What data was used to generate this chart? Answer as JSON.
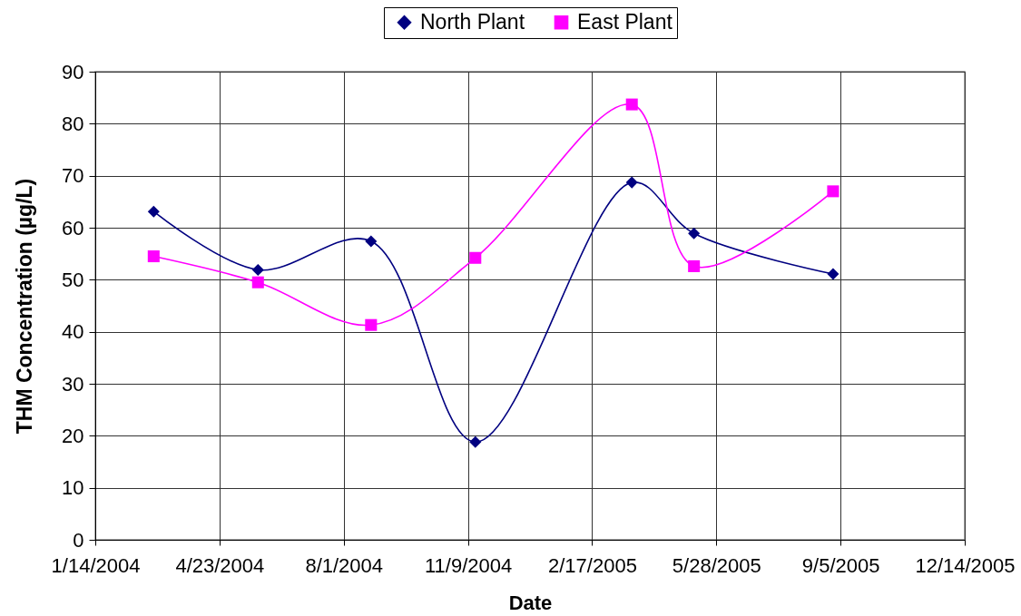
{
  "chart_data": {
    "type": "line",
    "xlabel": "Date",
    "ylabel": "THM Concentration (µg/L)",
    "x": [
      "2004-03-01",
      "2004-05-24",
      "2004-08-23",
      "2004-11-15",
      "2005-03-21",
      "2005-05-10",
      "2005-08-30"
    ],
    "series": [
      {
        "name": "North Plant",
        "color": "#000080",
        "marker": "diamond",
        "values": [
          63.1,
          51.9,
          57.4,
          18.8,
          68.7,
          58.9,
          51.1
        ]
      },
      {
        "name": "East Plant",
        "color": "#ff00ff",
        "marker": "square",
        "values": [
          54.5,
          49.5,
          41.3,
          54.2,
          83.7,
          52.6,
          67.0
        ]
      }
    ],
    "xlim": [
      "2004-01-14",
      "2005-12-14"
    ],
    "xticks": [
      {
        "value": "2004-01-14",
        "label": "1/14/2004"
      },
      {
        "value": "2004-04-23",
        "label": "4/23/2004"
      },
      {
        "value": "2004-08-01",
        "label": "8/1/2004"
      },
      {
        "value": "2004-11-09",
        "label": "11/9/2004"
      },
      {
        "value": "2005-02-17",
        "label": "2/17/2005"
      },
      {
        "value": "2005-05-28",
        "label": "5/28/2005"
      },
      {
        "value": "2005-09-05",
        "label": "9/5/2005"
      },
      {
        "value": "2005-12-14",
        "label": "12/14/2005"
      }
    ],
    "ylim": [
      0,
      90
    ],
    "yticks": [
      0,
      10,
      20,
      30,
      40,
      50,
      60,
      70,
      80,
      90
    ],
    "grid": true,
    "legend": "top"
  }
}
